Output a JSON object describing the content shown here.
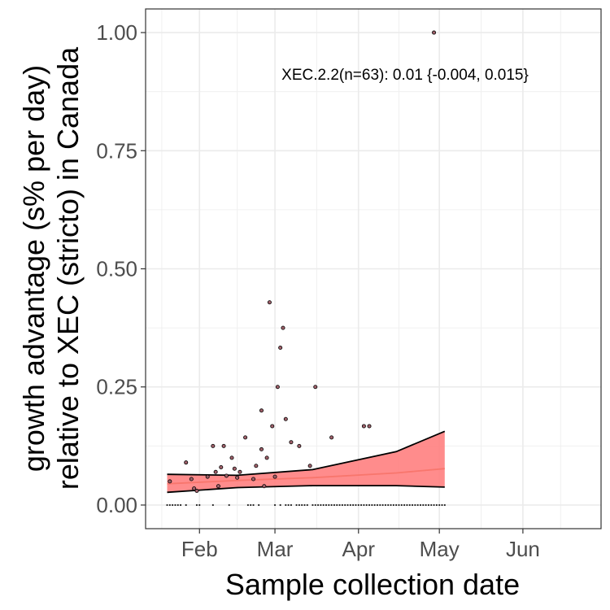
{
  "chart_data": {
    "type": "scatter",
    "xlabel": "Sample collection date",
    "ylabel_lines": [
      "growth advantage (s% per day)",
      "relative to XEC (stricto) in Canada"
    ],
    "annotation": "XEC.2.2(n=63): 0.01 {-0.004, 0.015}",
    "x_range": [
      "2025-01-12",
      "2025-06-30"
    ],
    "y_range": [
      -0.05,
      1.05
    ],
    "x_ticks": [
      {
        "date": "2025-02-01",
        "label": "Feb"
      },
      {
        "date": "2025-03-01",
        "label": "Mar"
      },
      {
        "date": "2025-04-01",
        "label": "Apr"
      },
      {
        "date": "2025-05-01",
        "label": "May"
      },
      {
        "date": "2025-06-01",
        "label": "Jun"
      }
    ],
    "y_ticks": [
      {
        "value": 0.0,
        "label": "0.00"
      },
      {
        "value": 0.25,
        "label": "0.25"
      },
      {
        "value": 0.5,
        "label": "0.50"
      },
      {
        "value": 0.75,
        "label": "0.75"
      },
      {
        "value": 1.0,
        "label": "1.00"
      }
    ],
    "grid": true,
    "colors": {
      "fit_line": "#f8766d",
      "ribbon_fill": "#ff7f7f",
      "ribbon_edge": "#000000",
      "point_fill": "#a0606a",
      "point_edge": "#000000"
    },
    "fit": {
      "x": [
        "2025-01-20",
        "2025-02-15",
        "2025-03-15",
        "2025-04-15",
        "2025-05-03"
      ],
      "y": [
        0.045,
        0.052,
        0.058,
        0.068,
        0.077
      ],
      "lower": [
        0.027,
        0.037,
        0.041,
        0.041,
        0.038
      ],
      "upper": [
        0.065,
        0.063,
        0.075,
        0.113,
        0.156
      ]
    },
    "points": [
      {
        "x": "2025-01-21",
        "y": 0.05
      },
      {
        "x": "2025-01-27",
        "y": 0.09
      },
      {
        "x": "2025-01-29",
        "y": 0.055
      },
      {
        "x": "2025-01-30",
        "y": 0.035
      },
      {
        "x": "2025-01-31",
        "y": 0.03
      },
      {
        "x": "2025-02-04",
        "y": 0.06
      },
      {
        "x": "2025-02-06",
        "y": 0.125
      },
      {
        "x": "2025-02-07",
        "y": 0.07
      },
      {
        "x": "2025-02-08",
        "y": 0.04
      },
      {
        "x": "2025-02-09",
        "y": 0.08
      },
      {
        "x": "2025-02-10",
        "y": 0.125
      },
      {
        "x": "2025-02-11",
        "y": 0.062
      },
      {
        "x": "2025-02-13",
        "y": 0.1
      },
      {
        "x": "2025-02-14",
        "y": 0.077
      },
      {
        "x": "2025-02-15",
        "y": 0.058
      },
      {
        "x": "2025-02-16",
        "y": 0.07
      },
      {
        "x": "2025-02-18",
        "y": 0.143
      },
      {
        "x": "2025-02-21",
        "y": 0.055
      },
      {
        "x": "2025-02-22",
        "y": 0.083
      },
      {
        "x": "2025-02-24",
        "y": 0.118
      },
      {
        "x": "2025-02-24",
        "y": 0.2
      },
      {
        "x": "2025-02-25",
        "y": 0.04
      },
      {
        "x": "2025-02-26",
        "y": 0.1
      },
      {
        "x": "2025-02-27",
        "y": 0.429
      },
      {
        "x": "2025-02-28",
        "y": 0.167
      },
      {
        "x": "2025-03-01",
        "y": 0.06
      },
      {
        "x": "2025-03-02",
        "y": 0.25
      },
      {
        "x": "2025-03-03",
        "y": 0.333
      },
      {
        "x": "2025-03-04",
        "y": 0.375
      },
      {
        "x": "2025-03-05",
        "y": 0.182
      },
      {
        "x": "2025-03-07",
        "y": 0.133
      },
      {
        "x": "2025-03-10",
        "y": 0.125
      },
      {
        "x": "2025-03-14",
        "y": 0.083
      },
      {
        "x": "2025-03-16",
        "y": 0.25
      },
      {
        "x": "2025-03-22",
        "y": 0.143
      },
      {
        "x": "2025-04-03",
        "y": 0.167
      },
      {
        "x": "2025-04-05",
        "y": 0.167
      },
      {
        "x": "2025-04-29",
        "y": 1.0
      }
    ],
    "zero_points_x": [
      "2025-01-20",
      "2025-01-21",
      "2025-01-22",
      "2025-01-23",
      "2025-01-24",
      "2025-01-25",
      "2025-01-27",
      "2025-01-31",
      "2025-02-01",
      "2025-02-06",
      "2025-02-12",
      "2025-02-19",
      "2025-02-20",
      "2025-02-21",
      "2025-02-23",
      "2025-03-01",
      "2025-03-03",
      "2025-03-05",
      "2025-03-06",
      "2025-03-07",
      "2025-03-09",
      "2025-03-10",
      "2025-03-11",
      "2025-03-12",
      "2025-03-13",
      "2025-03-15",
      "2025-03-16",
      "2025-03-17",
      "2025-03-18",
      "2025-03-19",
      "2025-03-20",
      "2025-03-21",
      "2025-03-22",
      "2025-03-23",
      "2025-03-24",
      "2025-03-25",
      "2025-03-26",
      "2025-03-27",
      "2025-03-28",
      "2025-03-29",
      "2025-03-30",
      "2025-03-31",
      "2025-04-01",
      "2025-04-02",
      "2025-04-03",
      "2025-04-04",
      "2025-04-05",
      "2025-04-06",
      "2025-04-07",
      "2025-04-08",
      "2025-04-09",
      "2025-04-10",
      "2025-04-11",
      "2025-04-12",
      "2025-04-13",
      "2025-04-14",
      "2025-04-15",
      "2025-04-16",
      "2025-04-17",
      "2025-04-18",
      "2025-04-19",
      "2025-04-20",
      "2025-04-21",
      "2025-04-22",
      "2025-04-23",
      "2025-04-24",
      "2025-04-25",
      "2025-04-26",
      "2025-04-27",
      "2025-04-28",
      "2025-04-29",
      "2025-04-30",
      "2025-05-01",
      "2025-05-02",
      "2025-05-03"
    ]
  }
}
